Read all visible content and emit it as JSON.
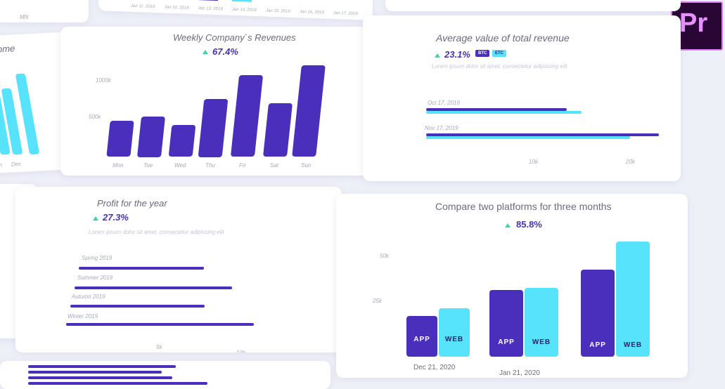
{
  "app_logo": {
    "text": "Pr",
    "icon": "premiere-pro-logo-icon"
  },
  "chart_data": [
    {
      "type": "bar",
      "title": "Weekly Company`s Revenues",
      "change": "67.4%",
      "categories": [
        "Mon",
        "Tue",
        "Wed",
        "Thu",
        "Fri",
        "Sat",
        "Sun"
      ],
      "values": [
        205,
        230,
        180,
        330,
        465,
        305,
        520
      ],
      "yticks": [
        "1000k",
        "500k"
      ],
      "grid": true
    },
    {
      "type": "bar",
      "title": "Average value of total revenue",
      "orientation": "horizontal",
      "change": "23.1%",
      "legend": [
        "BTC",
        "ETC"
      ],
      "subtitle": "Lorem ipsum dolor sit amet, consectetur adipiscing elit",
      "categories": [
        "Oct 17, 2019",
        "Nov 17, 2019"
      ],
      "series": [
        {
          "name": "BTC",
          "values": [
            14500,
            24000
          ]
        },
        {
          "name": "ETC",
          "values": [
            16000,
            21000
          ]
        }
      ],
      "xticks": [
        "10k",
        "20k"
      ],
      "xlim": [
        0,
        25000
      ]
    },
    {
      "type": "bar",
      "title": "Profit for the year",
      "orientation": "horizontal",
      "change": "27.3%",
      "subtitle": "Lorem ipsum dolor sit amet, consectetur adipiscing elit",
      "categories": [
        "Spring 2019",
        "Summer 2019",
        "Autumn 2019",
        "Winter 2019"
      ],
      "values": [
        8600,
        10800,
        9200,
        12900
      ],
      "xticks": [
        "5k",
        "10k"
      ],
      "xlim": [
        0,
        14000
      ]
    },
    {
      "type": "bar",
      "title": "Compare two platforms for three months",
      "change": "85.8%",
      "categories": [
        "Dec 21, 2020",
        "Jan 21, 2020",
        ""
      ],
      "series": [
        {
          "name": "APP",
          "values": [
            16000,
            26000,
            34000
          ]
        },
        {
          "name": "WEB",
          "values": [
            19000,
            27000,
            45000
          ]
        }
      ],
      "yticks": [
        "50k",
        "25k"
      ],
      "ylim": [
        0,
        55000
      ]
    },
    {
      "type": "bar",
      "values": [
        210,
        190,
        205,
        255
      ]
    }
  ],
  "partial_labels": {
    "left_title": "ome",
    "left_ticks": [
      "pn",
      "Dec"
    ],
    "top_ticks": [
      "Jan 11, 2019",
      "Jan 12, 2019",
      "Jan 13, 2019",
      "Jan 14, 2019",
      "Jan 15, 2019",
      "Jan 16, 2019",
      "Jan 17, 2019"
    ],
    "top_left": "MN"
  },
  "colors": {
    "purple": "#4a2fbd",
    "cyan": "#56e3fb",
    "green": "#3bd6a6"
  }
}
